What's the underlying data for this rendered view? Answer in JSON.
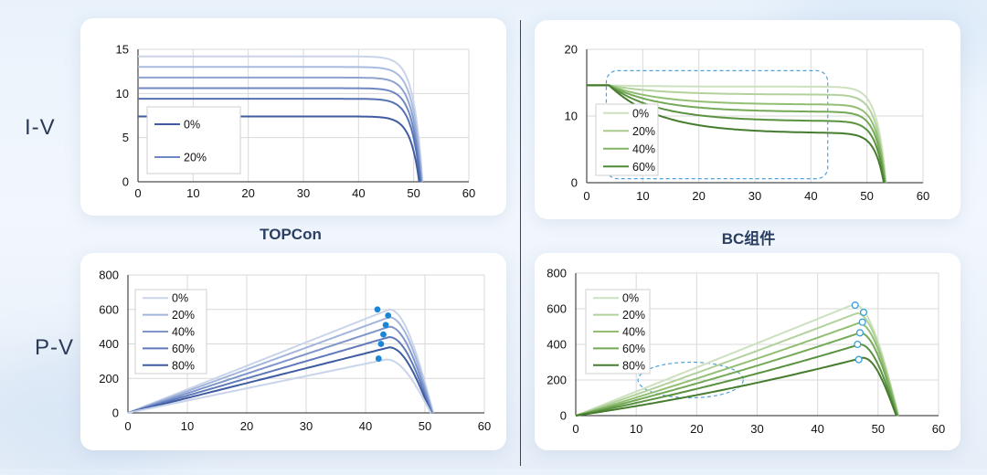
{
  "row_labels": {
    "iv": "I-V",
    "pv": "P-V"
  },
  "captions": {
    "left": "TOPCon",
    "right": "BC组件"
  },
  "chart_data": [
    {
      "id": "topcon-iv",
      "type": "line",
      "xlim": [
        0,
        60
      ],
      "ylim": [
        0,
        15
      ],
      "xticks": [
        "0",
        "10",
        "20",
        "30",
        "40",
        "50",
        "60"
      ],
      "yticks": [
        "0",
        "5",
        "10",
        "15"
      ],
      "grid": true,
      "legend_position": "bottom-left",
      "colors": [
        "#c9d4ea",
        "#a9bbdf",
        "#8ea3d2",
        "#6f87c3",
        "#5672b4",
        "#3f5ca2"
      ],
      "curves": [
        {
          "isc": 14.2,
          "voc": 51.6,
          "knee": 40.8
        },
        {
          "isc": 13.0,
          "voc": 51.5,
          "knee": 40.8
        },
        {
          "isc": 11.8,
          "voc": 51.4,
          "knee": 40.8
        },
        {
          "isc": 10.6,
          "voc": 51.3,
          "knee": 40.8
        },
        {
          "isc": 9.4,
          "voc": 51.2,
          "knee": 40.8
        },
        {
          "isc": 7.4,
          "voc": 51.0,
          "knee": 40.8
        }
      ],
      "legend": [
        {
          "label": "0%",
          "color": "#3f5ca2"
        },
        {
          "label": "20%",
          "color": "#6f87c3"
        }
      ]
    },
    {
      "id": "bc-iv",
      "type": "line",
      "xlim": [
        0,
        60
      ],
      "ylim": [
        0,
        20
      ],
      "xticks": [
        "0",
        "10",
        "20",
        "30",
        "40",
        "50",
        "60"
      ],
      "yticks": [
        "0",
        "10",
        "20"
      ],
      "grid": true,
      "legend_position": "bottom-left",
      "colors": [
        "#cde0bf",
        "#b2d19c",
        "#93bf75",
        "#74a957",
        "#5a923f",
        "#467c2e"
      ],
      "curves": [
        {
          "isc": 14.6,
          "voc": 53.4,
          "plateau": 14.4
        },
        {
          "isc": 14.6,
          "voc": 53.3,
          "plateau": 13.2
        },
        {
          "isc": 14.6,
          "voc": 53.3,
          "plateau": 11.7
        },
        {
          "isc": 14.6,
          "voc": 53.2,
          "plateau": 10.6
        },
        {
          "isc": 14.6,
          "voc": 53.1,
          "plateau": 9.2
        },
        {
          "isc": 14.6,
          "voc": 53.0,
          "plateau": 7.4
        }
      ],
      "legend": [
        {
          "label": "0%",
          "color": "#cde0bf"
        },
        {
          "label": "20%",
          "color": "#a9cb90"
        },
        {
          "label": "40%",
          "color": "#82b466"
        },
        {
          "label": "60%",
          "color": "#4f8a36"
        }
      ],
      "annotation": {
        "shape": "rounded-rect",
        "style": "dashed",
        "xrange": [
          3.5,
          43
        ],
        "yrange": [
          0.6,
          16.8
        ]
      }
    },
    {
      "id": "topcon-pv",
      "type": "line",
      "xlim": [
        0,
        60
      ],
      "ylim": [
        0,
        800
      ],
      "xticks": [
        "0",
        "10",
        "20",
        "30",
        "40",
        "50",
        "60"
      ],
      "yticks": [
        "0",
        "200",
        "400",
        "600",
        "800"
      ],
      "grid": true,
      "legend_position": "top-left",
      "colors": [
        "#c9d4ea",
        "#a3b5dc",
        "#7f96cb",
        "#5f79bb",
        "#3f5ca2"
      ],
      "curves": [
        {
          "pmax": 600,
          "vmp": 44,
          "voc": 51.4
        },
        {
          "pmax": 555,
          "vmp": 44,
          "voc": 51.3
        },
        {
          "pmax": 500,
          "vmp": 44,
          "voc": 51.2
        },
        {
          "pmax": 440,
          "vmp": 44,
          "voc": 51.1
        },
        {
          "pmax": 380,
          "vmp": 44,
          "voc": 51.0
        },
        {
          "pmax": 310,
          "vmp": 43.5,
          "voc": 51.0
        }
      ],
      "mpp_markers": [
        {
          "x": 42.0,
          "y": 600
        },
        {
          "x": 43.8,
          "y": 565
        },
        {
          "x": 43.4,
          "y": 510
        },
        {
          "x": 43.0,
          "y": 455
        },
        {
          "x": 42.6,
          "y": 400
        },
        {
          "x": 42.2,
          "y": 315
        }
      ],
      "marker_color": "#1a86d6",
      "legend": [
        {
          "label": "0%",
          "color": "#c9d4ea"
        },
        {
          "label": "20%",
          "color": "#a3b5dc"
        },
        {
          "label": "40%",
          "color": "#7f96cb"
        },
        {
          "label": "60%",
          "color": "#5f79bb"
        },
        {
          "label": "80%",
          "color": "#3f5ca2"
        }
      ]
    },
    {
      "id": "bc-pv",
      "type": "line",
      "xlim": [
        0,
        60
      ],
      "ylim": [
        0,
        800
      ],
      "xticks": [
        "0",
        "10",
        "20",
        "30",
        "40",
        "50",
        "60"
      ],
      "yticks": [
        "0",
        "200",
        "400",
        "600",
        "800"
      ],
      "grid": true,
      "legend_position": "top-left",
      "colors": [
        "#cde0bf",
        "#b2d19c",
        "#93bf75",
        "#74a957",
        "#5a923f",
        "#467c2e"
      ],
      "curves": [
        {
          "pmax": 625,
          "vmp": 46,
          "voc": 53.4,
          "plateau": 14.4
        },
        {
          "pmax": 575,
          "vmp": 46.5,
          "voc": 53.3,
          "plateau": 13.2
        },
        {
          "pmax": 520,
          "vmp": 46.8,
          "voc": 53.3,
          "plateau": 11.7
        },
        {
          "pmax": 465,
          "vmp": 47,
          "voc": 53.2,
          "plateau": 10.6
        },
        {
          "pmax": 400,
          "vmp": 47,
          "voc": 53.1,
          "plateau": 9.2
        },
        {
          "pmax": 325,
          "vmp": 47.5,
          "voc": 53.0,
          "plateau": 7.4
        }
      ],
      "mpp_markers": [
        {
          "x": 46.2,
          "y": 620
        },
        {
          "x": 47.6,
          "y": 580
        },
        {
          "x": 47.4,
          "y": 525
        },
        {
          "x": 47.0,
          "y": 465
        },
        {
          "x": 46.6,
          "y": 400
        },
        {
          "x": 46.8,
          "y": 315
        }
      ],
      "marker_color": "#3aa0d8",
      "marker_hollow": true,
      "legend": [
        {
          "label": "0%",
          "color": "#cde0bf"
        },
        {
          "label": "20%",
          "color": "#b2d19c"
        },
        {
          "label": "40%",
          "color": "#93bf75"
        },
        {
          "label": "60%",
          "color": "#74a957"
        },
        {
          "label": "80%",
          "color": "#467c2e"
        }
      ],
      "annotation": {
        "shape": "ellipse",
        "style": "dashed",
        "center": [
          19,
          200
        ],
        "rx": 8.7,
        "ry": 100
      }
    }
  ]
}
